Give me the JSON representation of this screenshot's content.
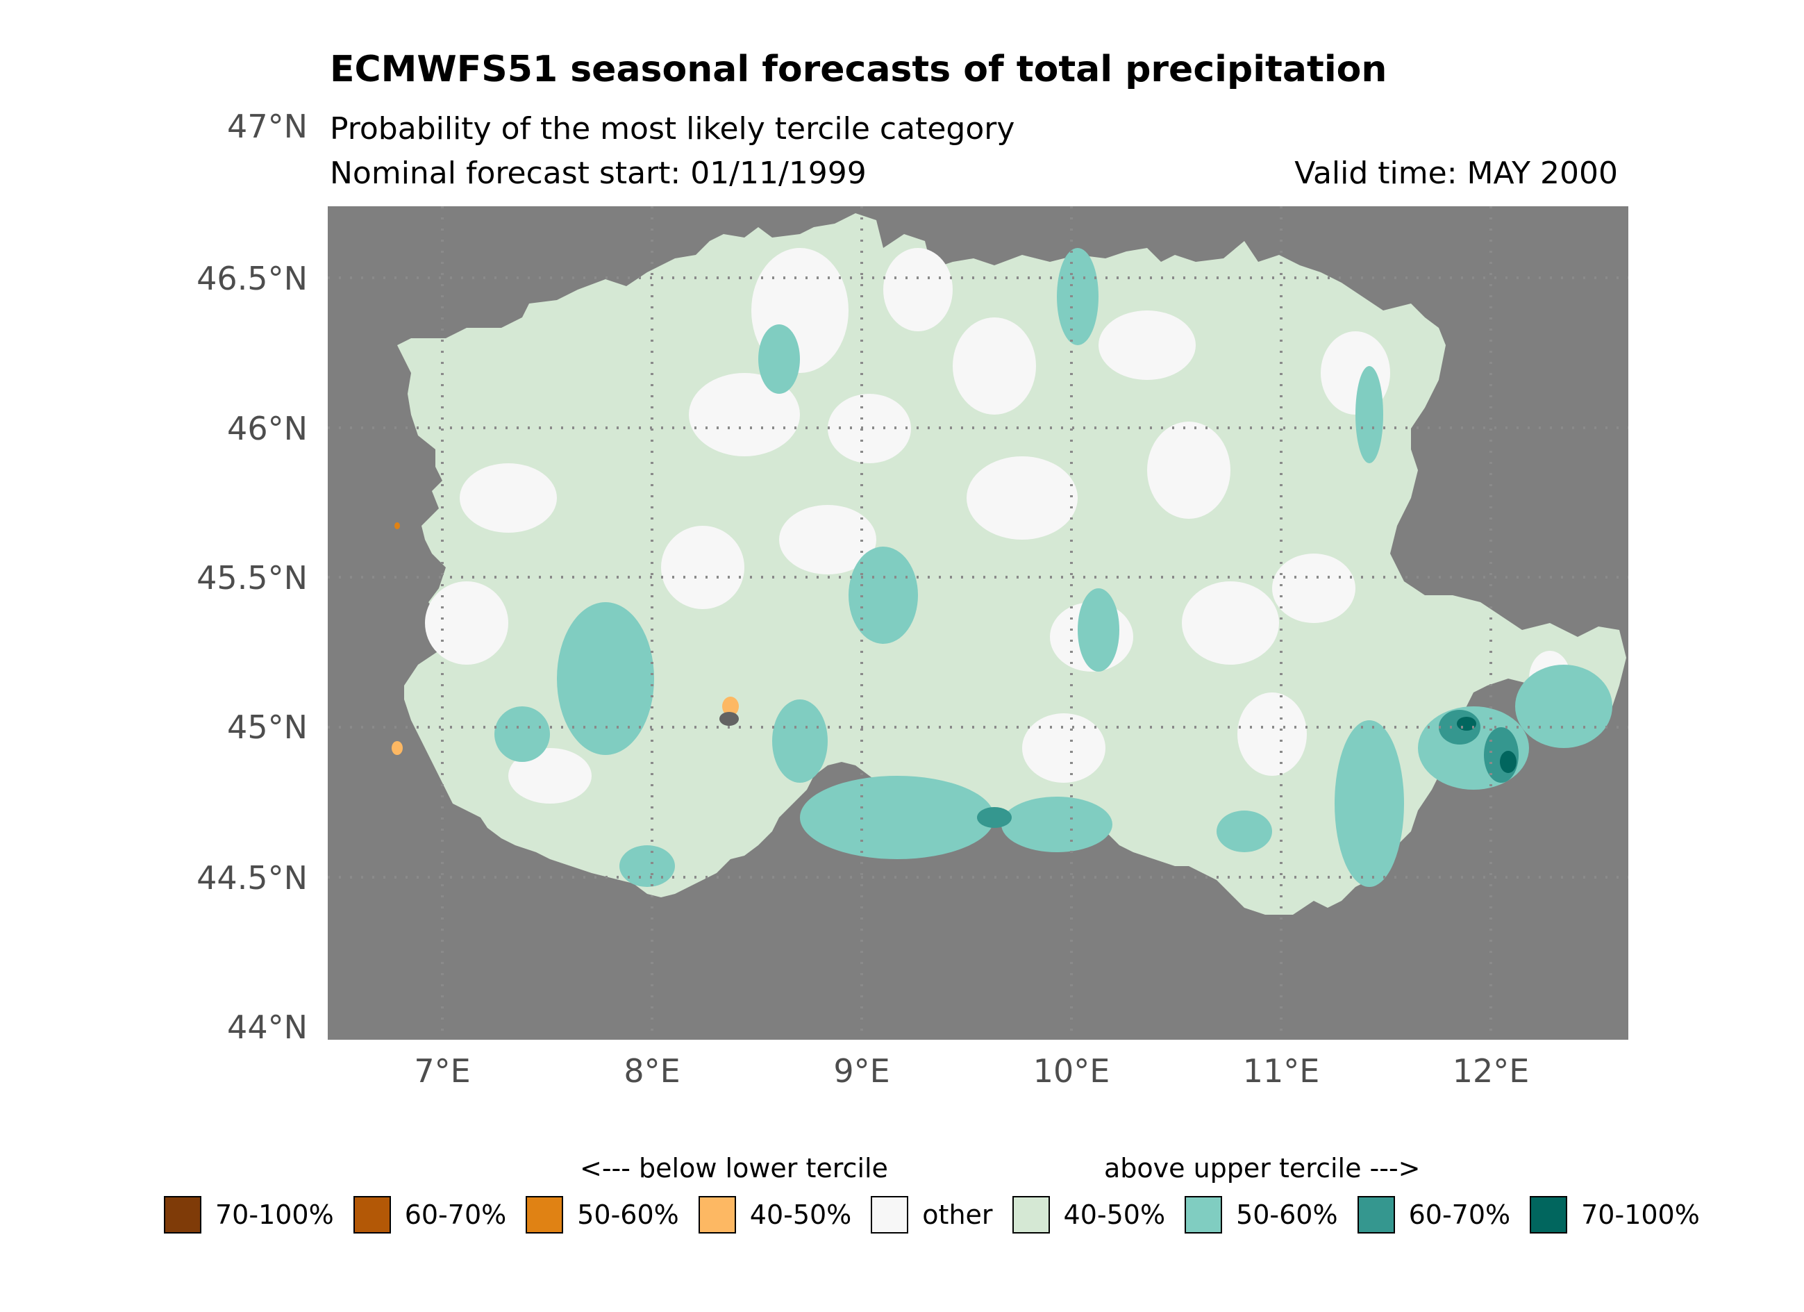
{
  "title": "ECMWFS51 seasonal forecasts of total precipitation",
  "subtitle": "Probability of the most likely tercile category",
  "forecast_start": "Nominal forecast start: 01/11/1999",
  "valid_time": "Valid time: MAY 2000",
  "map": {
    "background_color": "#7f7f7f",
    "region_base_color": "#d5e8d4",
    "lat_range": [
      44,
      46.75
    ],
    "lon_range": [
      6.5,
      12.7
    ],
    "lat_labels": [
      "47°N",
      "46.5°N",
      "46°N",
      "45.5°N",
      "45°N",
      "44.5°N",
      "44°N"
    ],
    "lon_labels": [
      "7°E",
      "8°E",
      "9°E",
      "10°E",
      "11°E",
      "12°E"
    ],
    "gridlines": "dotted"
  },
  "legend": {
    "below_heading": "<--- below lower tercile",
    "above_heading": "above upper tercile --->",
    "items": [
      {
        "label": "70-100%",
        "color": "#7f3b08"
      },
      {
        "label": "60-70%",
        "color": "#b35806"
      },
      {
        "label": "50-60%",
        "color": "#e08214"
      },
      {
        "label": "40-50%",
        "color": "#fdb863"
      },
      {
        "label": "other",
        "color": "#f7f7f7"
      },
      {
        "label": "40-50%",
        "color": "#d5e8d4"
      },
      {
        "label": "50-60%",
        "color": "#80cdc1"
      },
      {
        "label": "60-70%",
        "color": "#35978f"
      },
      {
        "label": "70-100%",
        "color": "#01665e"
      }
    ]
  }
}
